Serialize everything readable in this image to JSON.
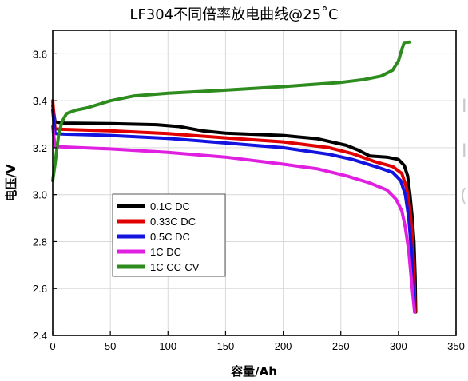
{
  "chart_data": {
    "type": "line",
    "title": "LF304不同倍率放电曲线@25˚C",
    "xlabel": "容量/Ah",
    "ylabel": "电压/V",
    "xlim": [
      0,
      350
    ],
    "ylim": [
      2.4,
      3.7
    ],
    "xticks": [
      0,
      50,
      100,
      150,
      200,
      250,
      300,
      350
    ],
    "yticks": [
      2.4,
      2.6,
      2.8,
      3.0,
      3.2,
      3.4,
      3.6
    ],
    "ytick_labels": [
      "2.4",
      "2.6",
      "2.8",
      "3.0",
      "3.2",
      "3.4",
      "3.6"
    ],
    "grid": true,
    "legend_position": "lower-left",
    "series": [
      {
        "name": "0.1C DC",
        "color": "#000000",
        "points": [
          [
            0,
            3.38
          ],
          [
            2,
            3.31
          ],
          [
            10,
            3.305
          ],
          [
            50,
            3.303
          ],
          [
            90,
            3.298
          ],
          [
            110,
            3.29
          ],
          [
            130,
            3.272
          ],
          [
            150,
            3.262
          ],
          [
            200,
            3.252
          ],
          [
            230,
            3.238
          ],
          [
            255,
            3.21
          ],
          [
            265,
            3.19
          ],
          [
            275,
            3.165
          ],
          [
            290,
            3.16
          ],
          [
            300,
            3.15
          ],
          [
            305,
            3.125
          ],
          [
            308,
            3.08
          ],
          [
            310,
            3.0
          ],
          [
            312,
            2.9
          ],
          [
            313.5,
            2.8
          ],
          [
            314.5,
            2.65
          ],
          [
            315,
            2.5
          ]
        ]
      },
      {
        "name": "0.33C DC",
        "color": "#e00000",
        "points": [
          [
            0,
            3.4
          ],
          [
            2,
            3.28
          ],
          [
            10,
            3.278
          ],
          [
            50,
            3.272
          ],
          [
            100,
            3.26
          ],
          [
            150,
            3.242
          ],
          [
            200,
            3.225
          ],
          [
            240,
            3.2
          ],
          [
            260,
            3.175
          ],
          [
            280,
            3.14
          ],
          [
            295,
            3.12
          ],
          [
            303,
            3.09
          ],
          [
            307,
            3.03
          ],
          [
            310,
            2.94
          ],
          [
            312,
            2.82
          ],
          [
            313.5,
            2.68
          ],
          [
            314.5,
            2.5
          ]
        ]
      },
      {
        "name": "0.5C DC",
        "color": "#1414e0",
        "points": [
          [
            0,
            3.36
          ],
          [
            2,
            3.26
          ],
          [
            10,
            3.258
          ],
          [
            50,
            3.252
          ],
          [
            100,
            3.24
          ],
          [
            150,
            3.22
          ],
          [
            200,
            3.2
          ],
          [
            240,
            3.172
          ],
          [
            260,
            3.15
          ],
          [
            280,
            3.12
          ],
          [
            295,
            3.095
          ],
          [
            302,
            3.06
          ],
          [
            306,
            3.0
          ],
          [
            309,
            2.9
          ],
          [
            311,
            2.78
          ],
          [
            313,
            2.62
          ],
          [
            314,
            2.5
          ]
        ]
      },
      {
        "name": "1C DC",
        "color": "#e020e0",
        "points": [
          [
            0,
            3.29
          ],
          [
            2,
            3.205
          ],
          [
            10,
            3.203
          ],
          [
            50,
            3.195
          ],
          [
            100,
            3.18
          ],
          [
            150,
            3.16
          ],
          [
            200,
            3.13
          ],
          [
            230,
            3.11
          ],
          [
            255,
            3.08
          ],
          [
            275,
            3.05
          ],
          [
            290,
            3.02
          ],
          [
            298,
            2.98
          ],
          [
            303,
            2.93
          ],
          [
            306,
            2.86
          ],
          [
            309,
            2.76
          ],
          [
            311,
            2.65
          ],
          [
            313,
            2.55
          ],
          [
            314,
            2.5
          ]
        ]
      },
      {
        "name": "1C CC-CV",
        "color": "#2e8b1e",
        "points": [
          [
            0,
            3.06
          ],
          [
            2,
            3.13
          ],
          [
            5,
            3.25
          ],
          [
            8,
            3.31
          ],
          [
            12,
            3.345
          ],
          [
            20,
            3.36
          ],
          [
            30,
            3.37
          ],
          [
            50,
            3.4
          ],
          [
            70,
            3.42
          ],
          [
            100,
            3.432
          ],
          [
            150,
            3.445
          ],
          [
            200,
            3.46
          ],
          [
            250,
            3.478
          ],
          [
            270,
            3.49
          ],
          [
            285,
            3.505
          ],
          [
            295,
            3.53
          ],
          [
            300,
            3.57
          ],
          [
            303,
            3.62
          ],
          [
            305,
            3.648
          ],
          [
            310,
            3.65
          ]
        ]
      }
    ]
  },
  "edge_glyphs": [
    "I",
    "I",
    "("
  ]
}
